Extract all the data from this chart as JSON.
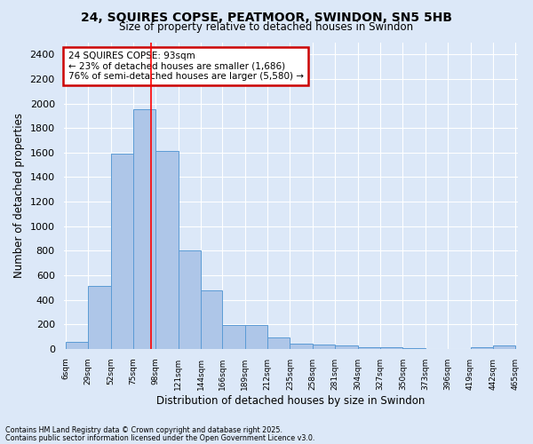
{
  "title_line1": "24, SQUIRES COPSE, PEATMOOR, SWINDON, SN5 5HB",
  "title_line2": "Size of property relative to detached houses in Swindon",
  "xlabel": "Distribution of detached houses by size in Swindon",
  "ylabel": "Number of detached properties",
  "annotation_title": "24 SQUIRES COPSE: 93sqm",
  "annotation_line2": "← 23% of detached houses are smaller (1,686)",
  "annotation_line3": "76% of semi-detached houses are larger (5,580) →",
  "footnote1": "Contains HM Land Registry data © Crown copyright and database right 2025.",
  "footnote2": "Contains public sector information licensed under the Open Government Licence v3.0.",
  "bar_edges": [
    6,
    29,
    52,
    75,
    98,
    121,
    144,
    166,
    189,
    212,
    235,
    258,
    281,
    304,
    327,
    350,
    373,
    396,
    419,
    442,
    465
  ],
  "bar_values": [
    55,
    510,
    1590,
    1950,
    1610,
    800,
    480,
    195,
    195,
    90,
    40,
    35,
    25,
    15,
    10,
    5,
    0,
    0,
    15,
    25
  ],
  "property_size": 93,
  "bar_color": "#aec6e8",
  "bar_edge_color": "#5b9bd5",
  "red_line_x": 93,
  "annotation_box_color": "#cc0000",
  "background_color": "#dce8f8",
  "plot_bg_color": "#dce8f8",
  "grid_color": "#ffffff",
  "ylim": [
    0,
    2500
  ],
  "yticks": [
    0,
    200,
    400,
    600,
    800,
    1000,
    1200,
    1400,
    1600,
    1800,
    2000,
    2200,
    2400
  ]
}
